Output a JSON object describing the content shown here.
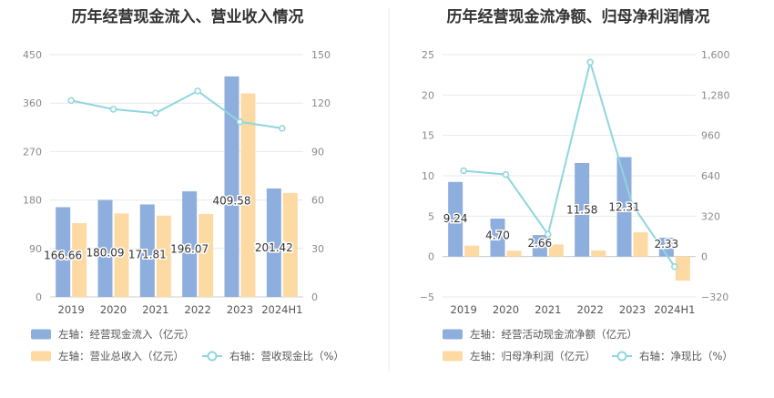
{
  "chart_data": [
    {
      "type": "bar+line",
      "title": "历年经营现金流入、营业收入情况",
      "categories": [
        "2019",
        "2020",
        "2021",
        "2022",
        "2023",
        "2024H1"
      ],
      "left_axis": {
        "min": 0,
        "max": 450,
        "ticks": [
          "0",
          "90",
          "180",
          "270",
          "360",
          "450"
        ]
      },
      "right_axis": {
        "min": 0,
        "max": 150,
        "ticks": [
          "0",
          "30",
          "60",
          "90",
          "120",
          "150"
        ]
      },
      "series": [
        {
          "name": "左轴：经营现金流入（亿元）",
          "kind": "bar",
          "axis": "left",
          "color": "#8eaedd",
          "values": [
            166.66,
            180.09,
            171.81,
            196.07,
            409.58,
            201.42
          ],
          "labels": [
            "166.66",
            "180.09",
            "171.81",
            "196.07",
            "409.58",
            "201.42"
          ]
        },
        {
          "name": "左轴：营业总收入（亿元）",
          "kind": "bar",
          "axis": "left",
          "color": "#fddaa3",
          "values": [
            137,
            155,
            151,
            154,
            378,
            193
          ]
        },
        {
          "name": "右轴：营收现金比（%）",
          "kind": "line",
          "axis": "right",
          "color": "#8fd6dc",
          "values": [
            121.6,
            116.2,
            113.8,
            127.5,
            108.4,
            104.4
          ]
        }
      ]
    },
    {
      "type": "bar+line",
      "title": "历年经营现金流净额、归母净利润情况",
      "categories": [
        "2019",
        "2020",
        "2021",
        "2022",
        "2023",
        "2024H1"
      ],
      "left_axis": {
        "min": -5,
        "max": 25,
        "ticks": [
          "−5",
          "0",
          "5",
          "10",
          "15",
          "20",
          "25"
        ]
      },
      "right_axis": {
        "min": -320,
        "max": 1600,
        "ticks": [
          "−320",
          "0",
          "320",
          "640",
          "960",
          "1,280",
          "1,600"
        ]
      },
      "series": [
        {
          "name": "左轴：经营活动现金流净额（亿元）",
          "kind": "bar",
          "axis": "left",
          "color": "#8eaedd",
          "values": [
            9.24,
            4.7,
            2.66,
            11.58,
            12.31,
            2.33
          ],
          "labels": [
            "9.24",
            "4.70",
            "2.66",
            "11.58",
            "12.31",
            "2.33"
          ]
        },
        {
          "name": "左轴：归母净利润（亿元）",
          "kind": "bar",
          "axis": "left",
          "color": "#fddaa3",
          "values": [
            1.35,
            0.72,
            1.5,
            0.75,
            3.0,
            -3.0
          ]
        },
        {
          "name": "右轴：净现比（%）",
          "kind": "line",
          "axis": "right",
          "color": "#8fd6dc",
          "values": [
            680,
            650,
            175,
            1540,
            410,
            -80
          ]
        }
      ]
    }
  ]
}
